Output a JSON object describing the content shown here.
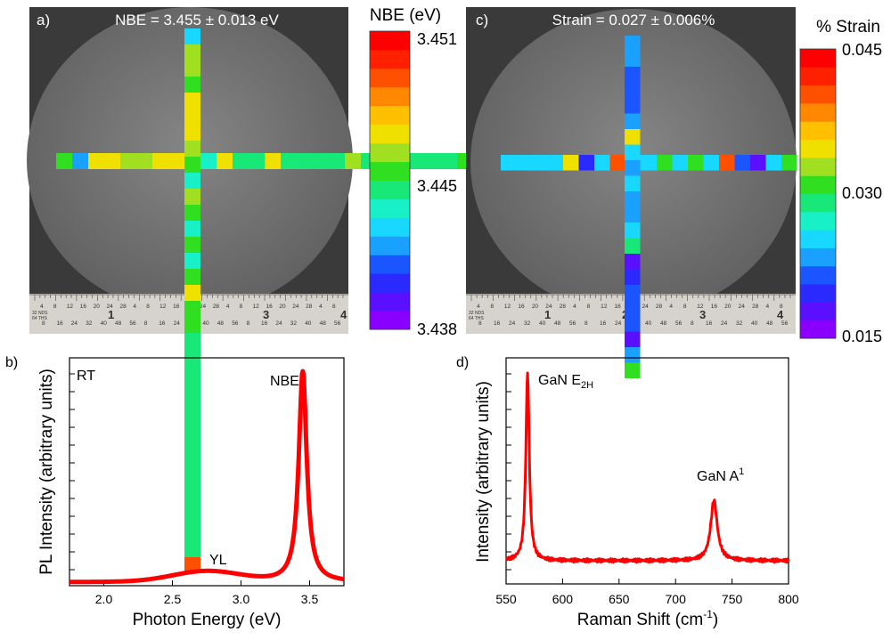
{
  "panel_a": {
    "label": "a)",
    "title": "NBE = 3.455 ± 0.013 eV",
    "colorbar": {
      "title": "NBE (eV)",
      "ticks": [
        "3.451",
        "3.445",
        "3.438"
      ]
    },
    "ruler": {
      "big_numbers": [
        "1",
        "2",
        "3",
        "4"
      ],
      "small_row_1": [
        "4",
        "8",
        "12",
        "16",
        "20",
        "24",
        "28",
        "4",
        "8",
        "12",
        "16",
        "20",
        "24",
        "28",
        "4",
        "8",
        "12",
        "16",
        "20",
        "24",
        "28",
        "4",
        "8"
      ],
      "small_row_2": [
        "8",
        "16",
        "24",
        "32",
        "40",
        "48",
        "56",
        "8",
        "16",
        "24",
        "32",
        "40",
        "48",
        "56",
        "8",
        "16",
        "24",
        "32",
        "40",
        "48",
        "56"
      ],
      "unit_1": "32 NDS",
      "unit_2": "64 THS"
    }
  },
  "panel_c": {
    "label": "c)",
    "title": "Strain = 0.027 ± 0.006%",
    "colorbar": {
      "title": "% Strain",
      "ticks": [
        "0.045",
        "0.030",
        "0.015"
      ]
    },
    "ruler": {
      "big_numbers": [
        "1",
        "2",
        "3",
        "4"
      ],
      "small_row_1": [
        "4",
        "8",
        "12",
        "16",
        "20",
        "24",
        "28",
        "4",
        "8",
        "12",
        "16",
        "20",
        "24",
        "28",
        "4",
        "8",
        "12",
        "16",
        "20",
        "24",
        "28",
        "4",
        "8"
      ],
      "small_row_2": [
        "8",
        "16",
        "24",
        "32",
        "40",
        "48",
        "56",
        "8",
        "16",
        "24",
        "32",
        "40",
        "48",
        "56",
        "8",
        "16",
        "24",
        "32",
        "40",
        "48",
        "56"
      ],
      "unit_1": "32 NDS",
      "unit_2": "64 THS"
    }
  },
  "colors": {
    "colorbar_stops": [
      "#8a00ff",
      "#5a10ff",
      "#2a2aff",
      "#1a55ff",
      "#1aa0ff",
      "#18d8ff",
      "#18f0c8",
      "#18e878",
      "#30e020",
      "#a0e020",
      "#f0e000",
      "#ffc000",
      "#ff8800",
      "#ff5000",
      "#ff2000",
      "#ff0000"
    ],
    "wafer": "#6f6f6f",
    "line": "#ff0000"
  },
  "chart_data": [
    {
      "panel": "b)",
      "type": "line",
      "xlabel": "Photon Energy (eV)",
      "ylabel": "PL Intensity (arbitrary units)",
      "xlim": [
        1.75,
        3.75
      ],
      "x_ticks": [
        "2.0",
        "2.5",
        "3.0",
        "3.5"
      ],
      "annotations": [
        "RT",
        "NBE",
        "YL"
      ],
      "peaks": [
        {
          "label": "YL",
          "x": 2.75
        },
        {
          "label": "NBE",
          "x": 3.45
        }
      ]
    },
    {
      "panel": "d)",
      "type": "line",
      "xlabel": "Raman Shift (cm",
      "xlabel_sup": "-1",
      "xlabel_end": ")",
      "ylabel": "Intensity (arbitrary units)",
      "xlim": [
        550,
        800
      ],
      "x_ticks": [
        "550",
        "600",
        "650",
        "700",
        "750",
        "800"
      ],
      "annotations": [
        {
          "text": "GaN E",
          "sub": "2H",
          "x": 569
        },
        {
          "text": "GaN A",
          "sup": "1",
          "x": 734
        }
      ]
    }
  ]
}
